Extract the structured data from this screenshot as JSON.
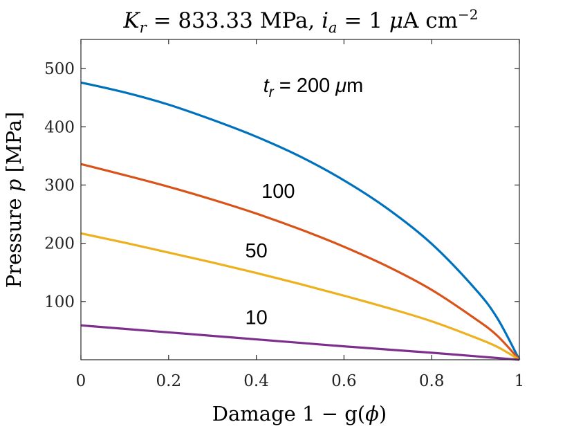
{
  "chart_data": {
    "type": "line",
    "title": {
      "k": "K",
      "k_sub": "r",
      "k_rest": " = 833.33 MPa, ",
      "i": "i",
      "i_sub": "a",
      "i_rest": " = 1 ",
      "mu": "μ",
      "unit": "A cm",
      "exp": "−2"
    },
    "xlabel": {
      "text": "Damage 1 − g(",
      "phi": "ϕ",
      "close": ")"
    },
    "ylabel": {
      "text": "Pressure ",
      "p": "p",
      "unit": " [MPa]"
    },
    "xlim": [
      0,
      1
    ],
    "ylim": [
      0,
      550
    ],
    "xticks": [
      0,
      0.2,
      0.4,
      0.6,
      0.8,
      1
    ],
    "xtick_labels": [
      "0",
      "0.2",
      "0.4",
      "0.6",
      "0.8",
      "1"
    ],
    "yticks": [
      100,
      200,
      300,
      400,
      500
    ],
    "ytick_labels": [
      "100",
      "200",
      "300",
      "400",
      "500"
    ],
    "grid": false,
    "series": [
      {
        "name": "200",
        "color": "#0072BD",
        "x": [
          0,
          0.1,
          0.2,
          0.3,
          0.4,
          0.5,
          0.6,
          0.7,
          0.8,
          0.9,
          0.95,
          1.0
        ],
        "y": [
          476,
          459,
          438,
          412,
          383,
          349,
          308,
          259,
          199,
          121,
          71,
          0
        ]
      },
      {
        "name": "100",
        "color": "#D95319",
        "x": [
          0,
          0.1,
          0.2,
          0.3,
          0.4,
          0.5,
          0.6,
          0.7,
          0.8,
          0.9,
          0.95,
          1.0
        ],
        "y": [
          336,
          317,
          297,
          275,
          251,
          224,
          194,
          160,
          120,
          70,
          41,
          0
        ]
      },
      {
        "name": "50",
        "color": "#EDB120",
        "x": [
          0,
          0.1,
          0.2,
          0.3,
          0.4,
          0.5,
          0.6,
          0.7,
          0.8,
          0.9,
          0.95,
          1.0
        ],
        "y": [
          217,
          201,
          184,
          167,
          149,
          130,
          110,
          89,
          66,
          38,
          22,
          0
        ]
      },
      {
        "name": "10",
        "color": "#7E2F8E",
        "x": [
          0,
          0.1,
          0.2,
          0.3,
          0.4,
          0.5,
          0.6,
          0.7,
          0.8,
          0.9,
          0.95,
          1.0
        ],
        "y": [
          59,
          53,
          47,
          41,
          35,
          29,
          23,
          17.5,
          12,
          6,
          3,
          0
        ]
      }
    ],
    "annotations": [
      {
        "id": "200",
        "prefix_t": "t",
        "prefix_sub": "r",
        "prefix_eq": " = ",
        "text": "200 ",
        "mu": "μ",
        "unit": "m",
        "x": 0.53,
        "y": 460
      },
      {
        "id": "100",
        "text": "100",
        "x": 0.45,
        "y": 278
      },
      {
        "id": "50",
        "text": "50",
        "x": 0.4,
        "y": 176
      },
      {
        "id": "10",
        "text": "10",
        "x": 0.4,
        "y": 61
      }
    ]
  }
}
